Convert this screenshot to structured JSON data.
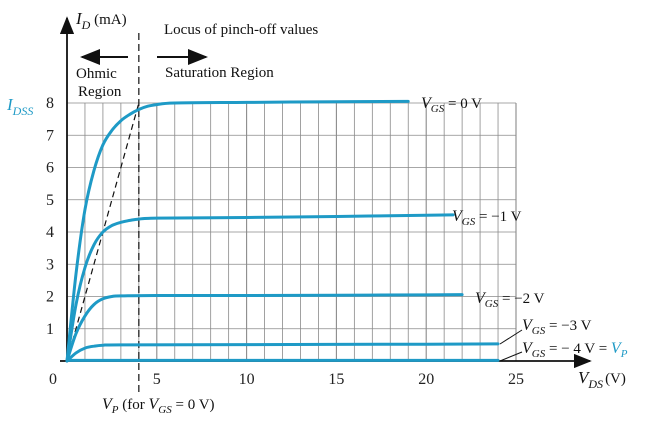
{
  "chart_data": {
    "type": "line",
    "title": "",
    "xlabel": "V_DS (V)",
    "ylabel": "I_D (mA)",
    "xlim": [
      0,
      25
    ],
    "ylim": [
      0,
      8
    ],
    "x_ticks": [
      5,
      10,
      15,
      20,
      25
    ],
    "y_ticks": [
      1,
      2,
      3,
      4,
      5,
      6,
      7,
      8
    ],
    "origin_label": "0",
    "grid": true,
    "colors": {
      "curve": "#1e9ac6",
      "accent": "#1e9ac6",
      "axis": "#111111"
    },
    "series": [
      {
        "name": "V_GS = 0 V",
        "points": [
          [
            0,
            0
          ],
          [
            0.5,
            2.7
          ],
          [
            1,
            4.7
          ],
          [
            1.5,
            5.9
          ],
          [
            2,
            6.7
          ],
          [
            2.5,
            7.15
          ],
          [
            3,
            7.45
          ],
          [
            3.5,
            7.65
          ],
          [
            4,
            7.8
          ],
          [
            4.5,
            7.9
          ],
          [
            5,
            7.95
          ],
          [
            6,
            8.0
          ],
          [
            10,
            8.02
          ],
          [
            15,
            8.04
          ],
          [
            19,
            8.05
          ]
        ]
      },
      {
        "name": "V_GS = -1 V",
        "points": [
          [
            0,
            0
          ],
          [
            0.5,
            1.75
          ],
          [
            1,
            2.9
          ],
          [
            1.5,
            3.6
          ],
          [
            2,
            4.0
          ],
          [
            2.5,
            4.2
          ],
          [
            3,
            4.3
          ],
          [
            3.5,
            4.36
          ],
          [
            4,
            4.4
          ],
          [
            5,
            4.43
          ],
          [
            10,
            4.45
          ],
          [
            15,
            4.48
          ],
          [
            20,
            4.52
          ],
          [
            21.5,
            4.53
          ]
        ]
      },
      {
        "name": "V_GS = -2 V",
        "points": [
          [
            0,
            0
          ],
          [
            0.5,
            0.85
          ],
          [
            1,
            1.4
          ],
          [
            1.5,
            1.75
          ],
          [
            2,
            1.93
          ],
          [
            2.5,
            2.0
          ],
          [
            3,
            2.02
          ],
          [
            5,
            2.03
          ],
          [
            10,
            2.03
          ],
          [
            15,
            2.04
          ],
          [
            20,
            2.05
          ],
          [
            22,
            2.06
          ]
        ]
      },
      {
        "name": "V_GS = -3 V",
        "points": [
          [
            0,
            0
          ],
          [
            0.5,
            0.25
          ],
          [
            1,
            0.4
          ],
          [
            1.5,
            0.46
          ],
          [
            2,
            0.49
          ],
          [
            3,
            0.5
          ],
          [
            10,
            0.51
          ],
          [
            20,
            0.52
          ],
          [
            24,
            0.53
          ]
        ]
      },
      {
        "name": "V_GS = - 4 V = V_P",
        "points": [
          [
            0,
            0.02
          ],
          [
            24,
            0.02
          ]
        ]
      }
    ],
    "pinch_off_locus": {
      "points": [
        [
          0,
          0
        ],
        [
          4,
          8
        ]
      ]
    },
    "vp_line": {
      "x": 4
    }
  },
  "labels": {
    "id_symbol": "I",
    "id_sub": "D",
    "id_unit": " (mA)",
    "vds_symbol": "V",
    "vds_sub": "DS",
    "vds_unit": "(V)",
    "idss_symbol": "I",
    "idss_sub": "DSS",
    "locus": "Locus of pinch-off values",
    "ohmic_1": "Ohmic",
    "ohmic_2": "Region",
    "saturation": "Saturation Region",
    "vgs_symbol": "V",
    "vgs_sub": "GS",
    "vgs0_value": " = 0 V",
    "vgs1_value": " = −1 V",
    "vgs2_value": " = −2 V",
    "vgs3_value": " = −3 V",
    "vgs4_value": " = − 4 V = ",
    "vp_symbol": "V",
    "vp_sub": "P",
    "vp_note_mid": " (for ",
    "vp_note_end": " = 0 V)"
  }
}
